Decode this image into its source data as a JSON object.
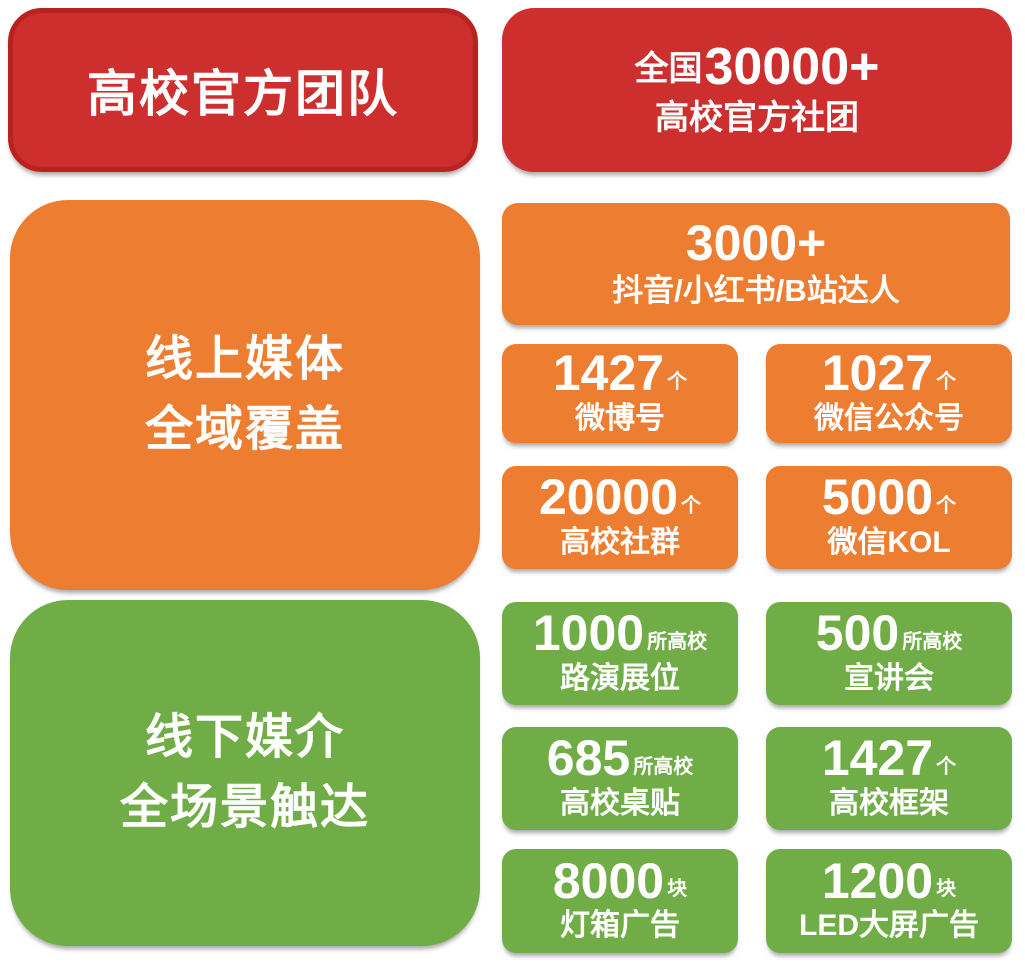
{
  "colors": {
    "red": "#cd2f2e",
    "red_border": "#b8221f",
    "orange": "#ed7d31",
    "green": "#70ad47",
    "text": "#ffffff"
  },
  "sections": {
    "universities": {
      "left_label": "高校官方团队",
      "stat": {
        "prefix": "全国",
        "number": "30000+",
        "label": "高校官方社团"
      }
    },
    "online": {
      "left_label_line1": "线上媒体",
      "left_label_line2": "全域覆盖",
      "wide_stat": {
        "number": "3000+",
        "label": "抖音/小红书/B站达人"
      },
      "stats": [
        {
          "number": "1427",
          "suffix": "个",
          "label": "微博号"
        },
        {
          "number": "1027",
          "suffix": "个",
          "label": "微信公众号"
        },
        {
          "number": "20000",
          "suffix": "个",
          "label": "高校社群"
        },
        {
          "number": "5000",
          "suffix": "个",
          "label": "微信KOL"
        }
      ]
    },
    "offline": {
      "left_label_line1": "线下媒介",
      "left_label_line2": "全场景触达",
      "stats": [
        {
          "number": "1000",
          "suffix": "所高校",
          "label": "路演展位"
        },
        {
          "number": "500",
          "suffix": "所高校",
          "label": "宣讲会"
        },
        {
          "number": "685",
          "suffix": "所高校",
          "label": "高校桌贴"
        },
        {
          "number": "1427",
          "suffix": "个",
          "label": "高校框架"
        },
        {
          "number": "8000",
          "suffix": "块",
          "label": "灯箱广告"
        },
        {
          "number": "1200",
          "suffix": "块",
          "label": "LED大屏广告"
        }
      ]
    }
  }
}
